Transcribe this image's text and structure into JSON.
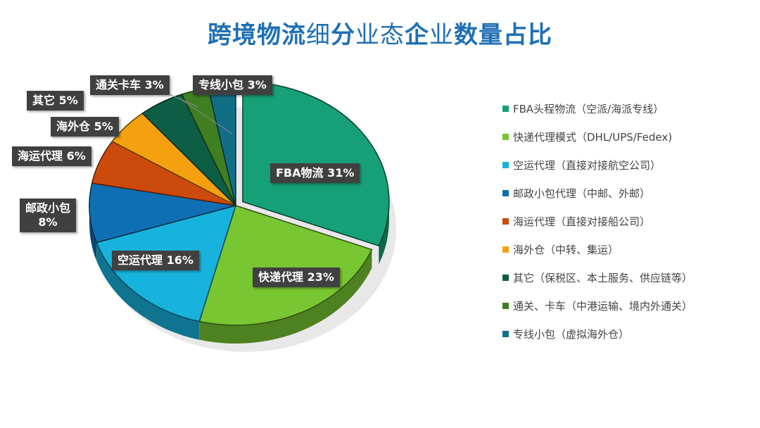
{
  "title": {
    "part1": "跨境物流",
    "part2": "细",
    "part3": "分",
    "part4": "业态",
    "part5": "企",
    "part6": "业",
    "part7": "数量占比"
  },
  "chart_data": {
    "type": "pie",
    "title": "跨境物流细分业态企业数量占比",
    "style": "3d-exploded",
    "legend_position": "right",
    "categories": [
      "FBA头程物流（空派/海派专线）",
      "快递代理模式（DHL/UPS/Fedex)",
      "空运代理（直接对接航空公司）",
      "邮政小包代理（中邮、外邮）",
      "海运代理（直接对接船公司）",
      "海外仓（中转、集运）",
      "其它（保税区、本土服务、供应链等）",
      "通关、卡车（中港运输、境内外通关）",
      "专线小包（虚拟海外仓）"
    ],
    "short_labels": [
      "FBA物流",
      "快递代理",
      "空运代理",
      "邮政小包",
      "海运代理",
      "海外仓",
      "其它",
      "通关卡车",
      "专线小包"
    ],
    "values": [
      31,
      23,
      16,
      8,
      6,
      5,
      5,
      3,
      3
    ],
    "colors": [
      "#17a077",
      "#78c631",
      "#17b3dc",
      "#0f6fb3",
      "#cc4a0c",
      "#f5a00f",
      "#0c5e45",
      "#3f7f22",
      "#126e86"
    ]
  },
  "labels": [
    {
      "text": "FBA物流  31%"
    },
    {
      "text": "快递代理 23%"
    },
    {
      "text": "空运代理 16%"
    },
    {
      "line1": "邮政小包",
      "line2": "8%"
    },
    {
      "text": "海运代理 6%"
    },
    {
      "text": "海外仓 5%"
    },
    {
      "text": "其它 5%"
    },
    {
      "text": "通关卡车 3%"
    },
    {
      "text": "专线小包 3%"
    }
  ],
  "legend": [
    {
      "label": "FBA头程物流（空派/海派专线）",
      "color": "#17a077"
    },
    {
      "label": "快递代理模式（DHL/UPS/Fedex)",
      "color": "#78c631"
    },
    {
      "label": "空运代理（直接对接航空公司）",
      "color": "#17b3dc"
    },
    {
      "label": "邮政小包代理（中邮、外邮）",
      "color": "#0f6fb3"
    },
    {
      "label": "海运代理（直接对接船公司）",
      "color": "#cc4a0c"
    },
    {
      "label": "海外仓（中转、集运）",
      "color": "#f5a00f"
    },
    {
      "label": "其它（保税区、本土服务、供应链等）",
      "color": "#0c5e45"
    },
    {
      "label": "通关、卡车（中港运输、境内外通关）",
      "color": "#3f7f22"
    },
    {
      "label": "专线小包（虚拟海外仓）",
      "color": "#126e86"
    }
  ]
}
